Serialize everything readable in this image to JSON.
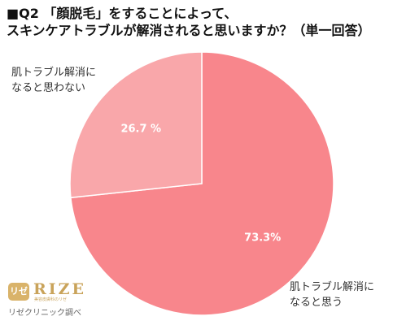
{
  "title": {
    "line1": "■Q2 「顔脱毛」をすることによって、",
    "line2": "スキンケアトラブルが解消されると思いますか？（単一回答）"
  },
  "chart_data": {
    "type": "pie",
    "title": "■Q2 「顔脱毛」をすることによって、スキンケアトラブルが解消されると思いますか？（単一回答）",
    "start_angle_deg": 0,
    "direction": "clockwise",
    "slices": [
      {
        "label_lines": [
          "肌トラブル解消に",
          "なると思う"
        ],
        "value": 73.3,
        "display": "73.3%",
        "color": "#f8868c"
      },
      {
        "label_lines": [
          "肌トラブル解消に",
          "なると思わない"
        ],
        "value": 26.7,
        "display": "26.7 %",
        "color": "#f9a7aa"
      }
    ],
    "legend_placement": "outside labels"
  },
  "logo": {
    "mark": "リゼ",
    "word": "RIZE",
    "sub": "美容皮膚科のリゼ",
    "caption": "リゼクリニック調べ",
    "color": "#c9a35a"
  }
}
